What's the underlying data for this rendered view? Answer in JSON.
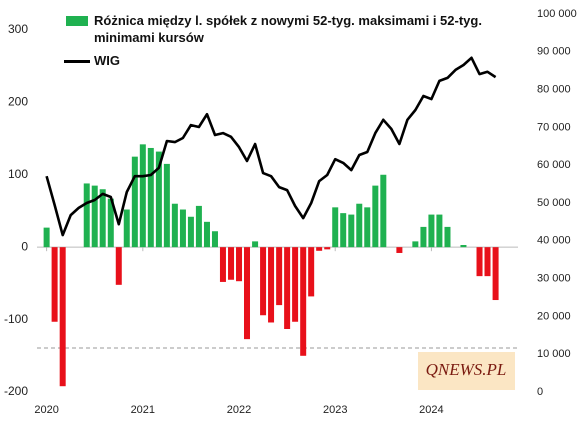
{
  "chart_data": {
    "type": "combo",
    "x": [
      2020,
      2020.083,
      2020.167,
      2020.25,
      2020.333,
      2020.417,
      2020.5,
      2020.583,
      2020.667,
      2020.75,
      2020.833,
      2020.917,
      2021,
      2021.083,
      2021.167,
      2021.25,
      2021.333,
      2021.417,
      2021.5,
      2021.583,
      2021.667,
      2021.75,
      2021.833,
      2021.917,
      2022,
      2022.083,
      2022.167,
      2022.25,
      2022.333,
      2022.417,
      2022.5,
      2022.583,
      2022.667,
      2022.75,
      2022.833,
      2022.917,
      2023,
      2023.083,
      2023.167,
      2023.25,
      2023.333,
      2023.417,
      2023.5,
      2023.583,
      2023.667,
      2023.75,
      2023.833,
      2023.917,
      2024,
      2024.083,
      2024.167,
      2024.25,
      2024.333,
      2024.417,
      2024.5,
      2024.583,
      2024.667
    ],
    "series": [
      {
        "name": "Różnica między l. spółek z nowymi 52-tyg. maksimami i 52-tyg. minimami kursów",
        "type": "bar",
        "color": "#1fb150",
        "negative_color": "#e8101a",
        "values": [
          27,
          -103,
          -192,
          0,
          0,
          88,
          85,
          80,
          67,
          -52,
          52,
          125,
          142,
          137,
          132,
          115,
          60,
          52,
          42,
          57,
          35,
          22,
          -48,
          -45,
          -47,
          -127,
          8,
          -94,
          -104,
          -80,
          -113,
          -103,
          -150,
          -68,
          -5,
          -3,
          55,
          47,
          45,
          60,
          55,
          85,
          100,
          0,
          -8,
          0,
          8,
          28,
          45,
          45,
          28,
          0,
          3,
          0,
          -40,
          -40,
          -73
        ]
      },
      {
        "name": "WIG",
        "type": "line",
        "color": "#000000",
        "axis": "y2",
        "values": [
          57100,
          49500,
          41500,
          46800,
          48700,
          50000,
          50800,
          52400,
          51600,
          44400,
          52900,
          57100,
          57100,
          57400,
          59300,
          66400,
          66100,
          67200,
          70600,
          70100,
          73500,
          68000,
          68500,
          67500,
          64800,
          61100,
          65600,
          57900,
          57100,
          54200,
          53400,
          49200,
          46000,
          50000,
          55800,
          57400,
          61600,
          60600,
          58700,
          62700,
          63500,
          68500,
          72000,
          69600,
          65600,
          72000,
          74600,
          78300,
          77500,
          82300,
          83100,
          85200,
          86500,
          88400,
          84100,
          84700,
          83300
        ]
      }
    ],
    "xlim": [
      2019.9,
      2024.9
    ],
    "xticks": [
      2020,
      2021,
      2022,
      2023,
      2024
    ],
    "ylim": [
      -200,
      322
    ],
    "yticks": [
      -200,
      -100,
      0,
      100,
      200,
      300
    ],
    "y2lim": [
      0,
      100000
    ],
    "y2ticks": [
      0,
      {
        "value": 10000,
        "label": "10 000"
      },
      {
        "value": 20000,
        "label": "20 000"
      },
      {
        "value": 30000,
        "label": "30 000"
      },
      {
        "value": 40000,
        "label": "40 000"
      },
      {
        "value": 50000,
        "label": "50 000"
      },
      {
        "value": 60000,
        "label": "60 000"
      },
      {
        "value": 70000,
        "label": "70 000"
      },
      {
        "value": 80000,
        "label": "80 000"
      },
      {
        "value": 90000,
        "label": "90 000"
      },
      {
        "value": 100000,
        "label": "100 000"
      }
    ],
    "legend": "upper left",
    "logo": "QNEWS.PL"
  }
}
